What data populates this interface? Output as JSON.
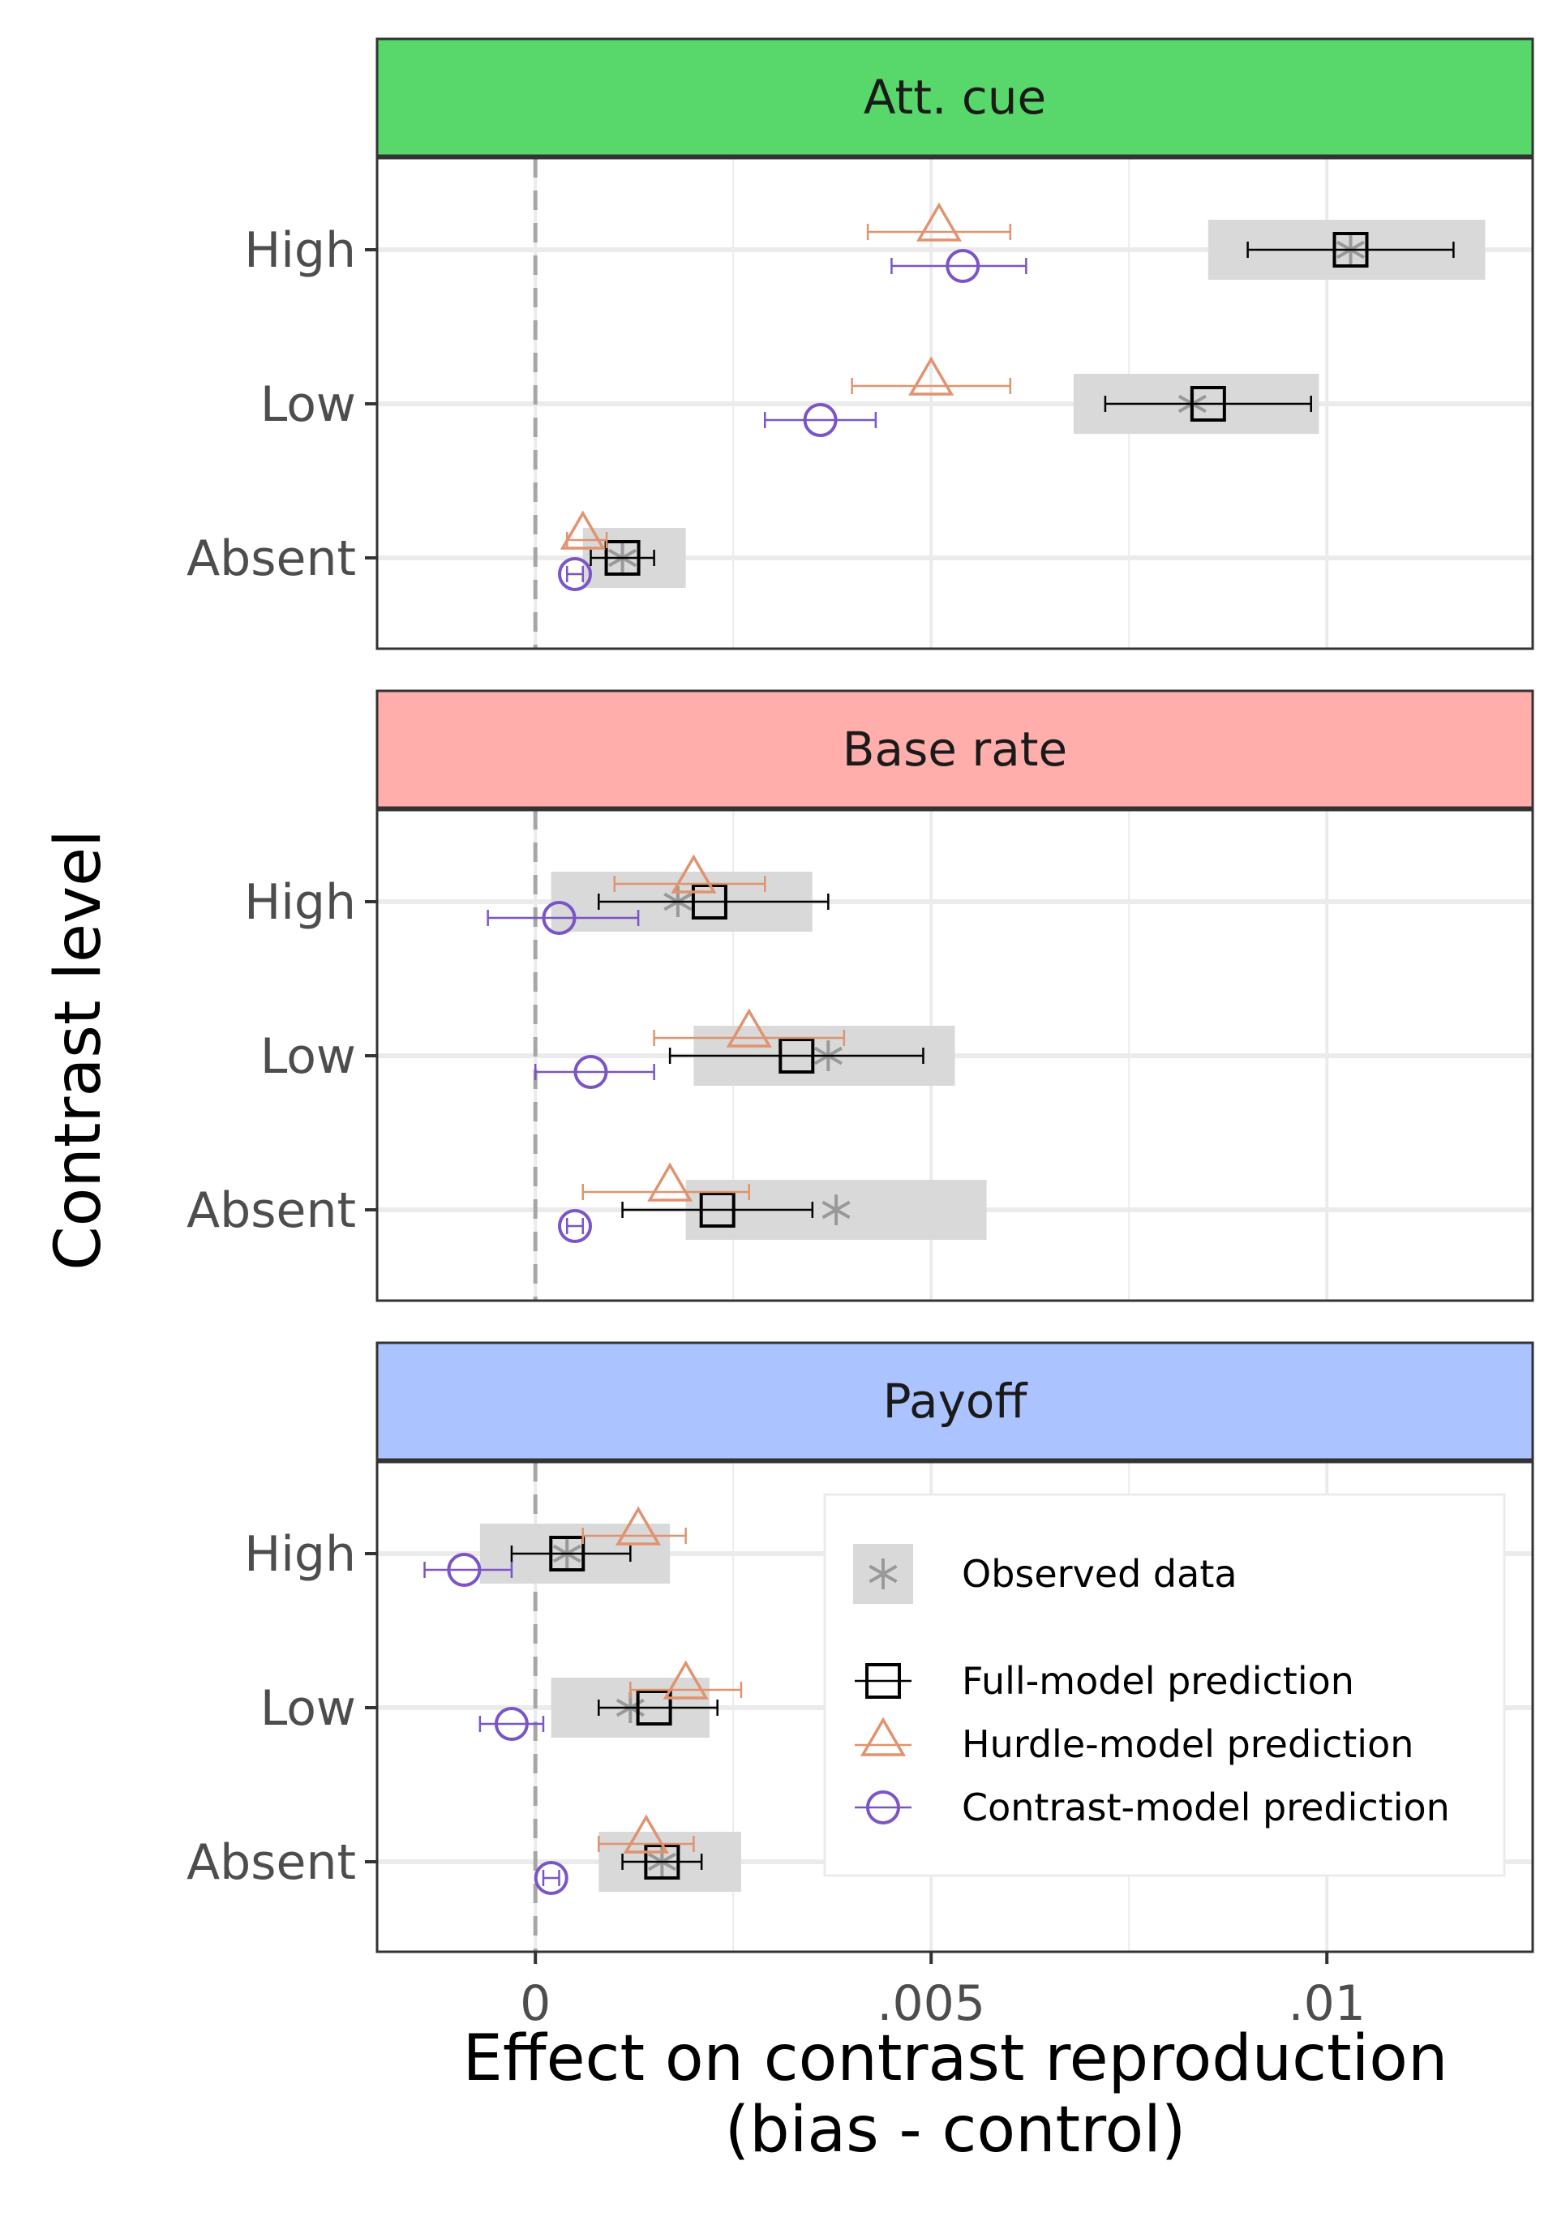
{
  "chart_data": {
    "type": "dot-errorbar-faceted",
    "ylabel": "Contrast level",
    "xlabel_line1": "Effect on contrast reproduction",
    "xlabel_line2": "(bias - control)",
    "xlim": [
      -0.002,
      0.0126
    ],
    "x_ticks": [
      0,
      0.005,
      0.01
    ],
    "x_tick_labels": [
      "0",
      ".005",
      ".01"
    ],
    "reference_line_x": 0,
    "grid": true,
    "levels": [
      "High",
      "Low",
      "Absent"
    ],
    "legend": {
      "position": "inside-bottom-right",
      "observed": "Observed data",
      "full": "Full-model prediction",
      "hurdle": "Hurdle-model prediction",
      "contrast": "Contrast-model prediction"
    },
    "colors": {
      "full": "#000000",
      "hurdle": "#e0936f",
      "contrast": "#7b55c7",
      "observed": "#999999",
      "observed_band": "#d9d9d9"
    },
    "panels": [
      {
        "name": "Att. cue",
        "strip_color": "#58d86a",
        "rows": [
          {
            "level": "High",
            "observed": {
              "x": 0.0103,
              "lo": 0.0085,
              "hi": 0.012
            },
            "full": {
              "x": 0.0103,
              "lo": 0.009,
              "hi": 0.0116
            },
            "hurdle": {
              "x": 0.0051,
              "lo": 0.0042,
              "hi": 0.006
            },
            "contrast": {
              "x": 0.0054,
              "lo": 0.0045,
              "hi": 0.0062
            }
          },
          {
            "level": "Low",
            "observed": {
              "x": 0.0083,
              "lo": 0.0068,
              "hi": 0.0099
            },
            "full": {
              "x": 0.0085,
              "lo": 0.0072,
              "hi": 0.0098
            },
            "hurdle": {
              "x": 0.005,
              "lo": 0.004,
              "hi": 0.006
            },
            "contrast": {
              "x": 0.0036,
              "lo": 0.0029,
              "hi": 0.0043
            }
          },
          {
            "level": "Absent",
            "observed": {
              "x": 0.0011,
              "lo": 0.0006,
              "hi": 0.0019
            },
            "full": {
              "x": 0.0011,
              "lo": 0.0007,
              "hi": 0.0015
            },
            "hurdle": {
              "x": 0.0006,
              "lo": 0.0004,
              "hi": 0.0009
            },
            "contrast": {
              "x": 0.0005,
              "lo": 0.0004,
              "hi": 0.0006
            }
          }
        ]
      },
      {
        "name": "Base rate",
        "strip_color": "#ffaeab",
        "rows": [
          {
            "level": "High",
            "observed": {
              "x": 0.0018,
              "lo": 0.0002,
              "hi": 0.0035
            },
            "full": {
              "x": 0.0022,
              "lo": 0.0008,
              "hi": 0.0037
            },
            "hurdle": {
              "x": 0.002,
              "lo": 0.001,
              "hi": 0.0029
            },
            "contrast": {
              "x": 0.0003,
              "lo": -0.0006,
              "hi": 0.0013
            }
          },
          {
            "level": "Low",
            "observed": {
              "x": 0.0037,
              "lo": 0.002,
              "hi": 0.0053
            },
            "full": {
              "x": 0.0033,
              "lo": 0.0017,
              "hi": 0.0049
            },
            "hurdle": {
              "x": 0.0027,
              "lo": 0.0015,
              "hi": 0.0039
            },
            "contrast": {
              "x": 0.0007,
              "lo": 0.0,
              "hi": 0.0015
            }
          },
          {
            "level": "Absent",
            "observed": {
              "x": 0.0038,
              "lo": 0.0019,
              "hi": 0.0057
            },
            "full": {
              "x": 0.0023,
              "lo": 0.0011,
              "hi": 0.0035
            },
            "hurdle": {
              "x": 0.0017,
              "lo": 0.0006,
              "hi": 0.0027
            },
            "contrast": {
              "x": 0.0005,
              "lo": 0.0004,
              "hi": 0.0006
            }
          }
        ]
      },
      {
        "name": "Payoff",
        "strip_color": "#abc3ff",
        "rows": [
          {
            "level": "High",
            "observed": {
              "x": 0.0004,
              "lo": -0.0007,
              "hi": 0.0017
            },
            "full": {
              "x": 0.0004,
              "lo": -0.0003,
              "hi": 0.0012
            },
            "hurdle": {
              "x": 0.0013,
              "lo": 0.0006,
              "hi": 0.0019
            },
            "contrast": {
              "x": -0.0009,
              "lo": -0.0014,
              "hi": -0.0003
            }
          },
          {
            "level": "Low",
            "observed": {
              "x": 0.0012,
              "lo": 0.0002,
              "hi": 0.0022
            },
            "full": {
              "x": 0.0015,
              "lo": 0.0008,
              "hi": 0.0023
            },
            "hurdle": {
              "x": 0.0019,
              "lo": 0.0012,
              "hi": 0.0026
            },
            "contrast": {
              "x": -0.0003,
              "lo": -0.0007,
              "hi": 0.0001
            }
          },
          {
            "level": "Absent",
            "observed": {
              "x": 0.0016,
              "lo": 0.0008,
              "hi": 0.0026
            },
            "full": {
              "x": 0.0016,
              "lo": 0.0011,
              "hi": 0.0021
            },
            "hurdle": {
              "x": 0.0014,
              "lo": 0.0008,
              "hi": 0.002
            },
            "contrast": {
              "x": 0.0002,
              "lo": 0.0001,
              "hi": 0.0003
            }
          }
        ]
      }
    ]
  }
}
